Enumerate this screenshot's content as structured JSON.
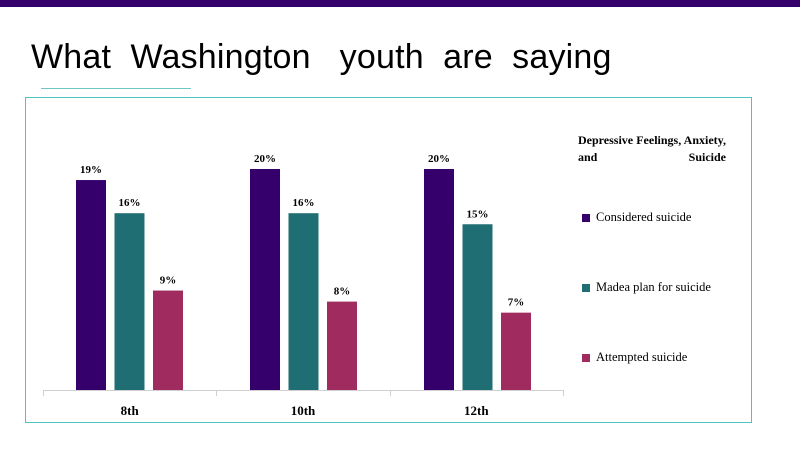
{
  "slide": {
    "title": "What  Washington   youth  are  saying"
  },
  "colors": {
    "topbar": "#35006b",
    "frame": "#4fc3c3"
  },
  "chart_data": {
    "type": "bar",
    "categories": [
      "8th",
      "10th",
      "12th"
    ],
    "series": [
      {
        "name": "Considered  suicide",
        "values": [
          19,
          20,
          20
        ],
        "labels": [
          "19%",
          "20%",
          "20%"
        ],
        "color": "#35006b"
      },
      {
        "name": "Madea  plan  for suicide",
        "values": [
          16,
          16,
          15
        ],
        "labels": [
          "16%",
          "16%",
          "15%"
        ],
        "color": "#1f6e73"
      },
      {
        "name": "Attempted  suicide",
        "values": [
          9,
          8,
          7
        ],
        "labels": [
          "9%",
          "8%",
          "7%"
        ],
        "color": "#a02b5e"
      }
    ],
    "ylim": [
      0,
      20
    ],
    "legend_title": "Depressive Feelings, Anxiety, and Suicide",
    "legend_position": "right",
    "grid": false
  }
}
